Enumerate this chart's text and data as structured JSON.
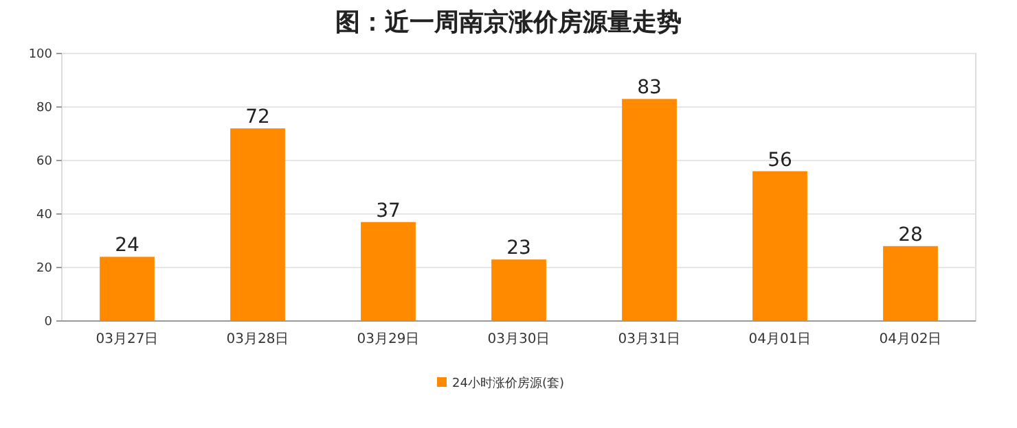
{
  "chart_data": {
    "type": "bar",
    "title": "图：近一周南京涨价房源量走势",
    "categories": [
      "03月27日",
      "03月28日",
      "03月29日",
      "03月30日",
      "03月31日",
      "04月01日",
      "04月02日"
    ],
    "series": [
      {
        "name": "24小时涨价房源(套)",
        "color": "#ff8a00",
        "values": [
          24,
          72,
          37,
          23,
          83,
          56,
          28
        ]
      }
    ],
    "ylim": [
      0,
      100
    ],
    "yticks": [
      0,
      20,
      40,
      60,
      80,
      100
    ],
    "grid": "y",
    "legend": "bottom",
    "data_labels": true
  }
}
